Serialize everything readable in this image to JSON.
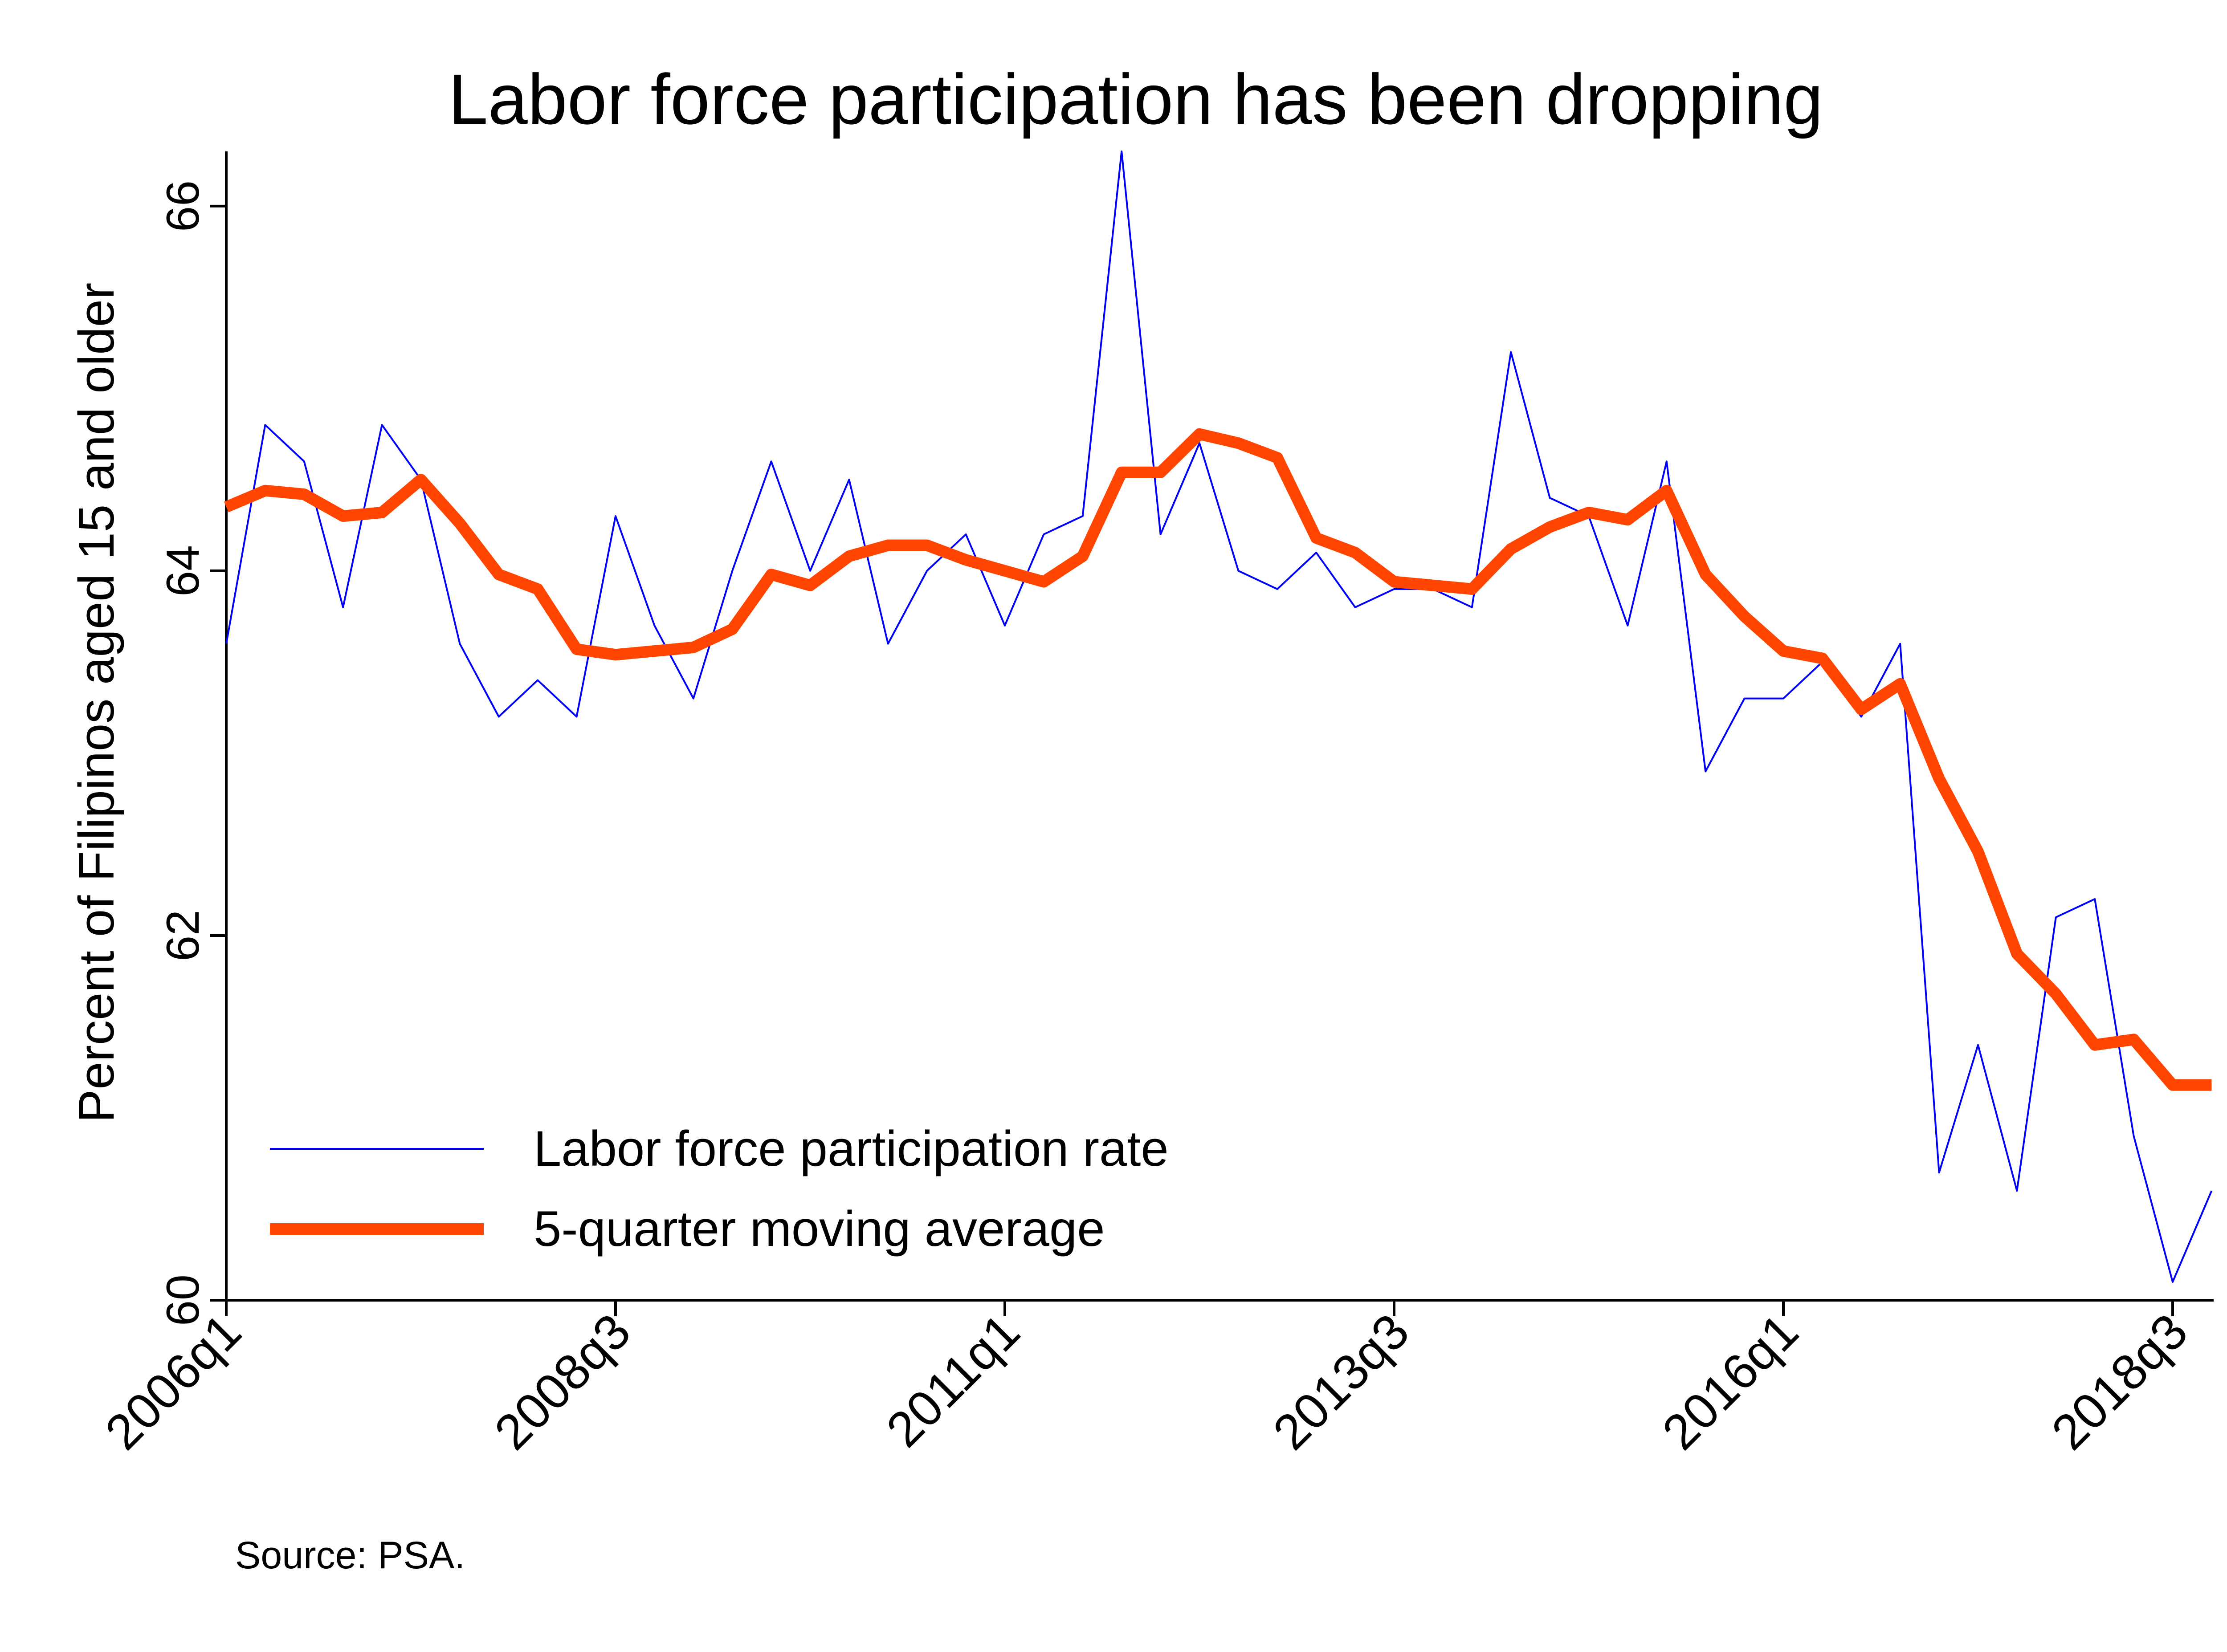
{
  "chart_data": {
    "type": "line",
    "title": "Labor force participation has been dropping",
    "xlabel": "",
    "ylabel": "Percent of Filipinos aged 15 and older",
    "source": "Source: PSA.",
    "ylim": [
      60,
      66.3
    ],
    "yticks": [
      60,
      62,
      64,
      66
    ],
    "x_tick_labels": [
      "2006q1",
      "2008q3",
      "2011q1",
      "2013q3",
      "2016q1",
      "2018q3"
    ],
    "x": [
      "2006q1",
      "2006q2",
      "2006q3",
      "2006q4",
      "2007q1",
      "2007q2",
      "2007q3",
      "2007q4",
      "2008q1",
      "2008q2",
      "2008q3",
      "2008q4",
      "2009q1",
      "2009q2",
      "2009q3",
      "2009q4",
      "2010q1",
      "2010q2",
      "2010q3",
      "2010q4",
      "2011q1",
      "2011q2",
      "2011q3",
      "2011q4",
      "2012q1",
      "2012q2",
      "2012q3",
      "2012q4",
      "2013q1",
      "2013q2",
      "2013q3",
      "2013q4",
      "2014q1",
      "2014q2",
      "2014q3",
      "2014q4",
      "2015q1",
      "2015q2",
      "2015q3",
      "2015q4",
      "2016q1",
      "2016q2",
      "2016q3",
      "2016q4",
      "2017q1",
      "2017q2",
      "2017q3",
      "2017q4",
      "2018q1",
      "2018q2",
      "2018q3",
      "2018q4"
    ],
    "grid": false,
    "legend": "bottom-left",
    "series": [
      {
        "name": "Labor force participation rate",
        "color": "#0000ff",
        "values": [
          63.6,
          64.8,
          64.6,
          63.8,
          64.8,
          64.5,
          63.6,
          63.2,
          63.4,
          63.2,
          64.3,
          63.7,
          63.3,
          64.0,
          64.6,
          64.0,
          64.5,
          63.6,
          64.0,
          64.2,
          63.7,
          64.2,
          64.3,
          66.3,
          64.2,
          64.7,
          64.0,
          63.9,
          64.1,
          63.8,
          63.9,
          63.9,
          63.8,
          65.2,
          64.4,
          64.3,
          63.7,
          64.6,
          62.9,
          63.3,
          63.3,
          63.5,
          63.2,
          63.6,
          60.7,
          61.4,
          60.6,
          62.1,
          62.2,
          60.9,
          60.1,
          60.6
        ]
      },
      {
        "name": "5-quarter moving average",
        "color": "#ff4500",
        "values": [
          64.35,
          64.44,
          64.42,
          64.3,
          64.32,
          64.5,
          64.26,
          63.98,
          63.9,
          63.57,
          63.54,
          63.56,
          63.58,
          63.68,
          63.98,
          63.92,
          64.08,
          64.14,
          64.14,
          64.06,
          64.0,
          63.94,
          64.08,
          64.54,
          64.54,
          64.75,
          64.7,
          64.62,
          64.18,
          64.1,
          63.94,
          63.92,
          63.9,
          64.12,
          64.24,
          64.32,
          64.28,
          64.44,
          63.98,
          63.75,
          63.56,
          63.52,
          63.24,
          63.38,
          62.86,
          62.46,
          61.9,
          61.68,
          61.4,
          61.43,
          61.18,
          61.18
        ]
      }
    ]
  }
}
